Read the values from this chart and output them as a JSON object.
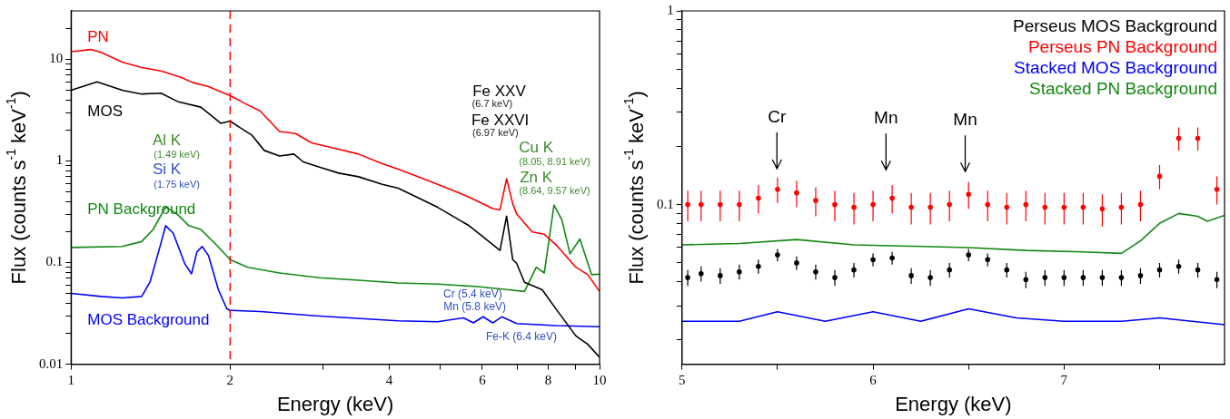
{
  "chart_data": [
    {
      "type": "line",
      "log": "xy",
      "xlabel": "Energy (keV)",
      "ylabel": "Flux (counts s$^{-1}$ keV$^{-1}$)",
      "xlim": [
        1,
        10
      ],
      "xticks": [
        1,
        2,
        {
          "value": 3,
          "label": null
        },
        4,
        {
          "value": 5,
          "label": null
        },
        6,
        {
          "value": 7,
          "label": null
        },
        8,
        {
          "value": 9,
          "label": null
        },
        10
      ],
      "ylim": [
        0.01,
        30
      ],
      "yticks": [
        0.01,
        {
          "value": 0.02,
          "label": null
        },
        {
          "value": 0.03,
          "label": null
        },
        {
          "value": 0.04,
          "label": null
        },
        {
          "value": 0.05,
          "label": null
        },
        {
          "value": 0.06,
          "label": null
        },
        {
          "value": 0.07,
          "label": null
        },
        {
          "value": 0.08,
          "label": null
        },
        {
          "value": 0.09,
          "label": null
        },
        0.1,
        {
          "value": 0.2,
          "label": null
        },
        {
          "value": 0.3,
          "label": null
        },
        {
          "value": 0.4,
          "label": null
        },
        {
          "value": 0.5,
          "label": null
        },
        {
          "value": 0.6,
          "label": null
        },
        {
          "value": 0.7,
          "label": null
        },
        {
          "value": 0.8,
          "label": null
        },
        {
          "value": 0.9,
          "label": null
        },
        1,
        {
          "value": 2,
          "label": null
        },
        {
          "value": 3,
          "label": null
        },
        {
          "value": 4,
          "label": null
        },
        {
          "value": 5,
          "label": null
        },
        {
          "value": 6,
          "label": null
        },
        {
          "value": 7,
          "label": null
        },
        {
          "value": 8,
          "label": null
        },
        {
          "value": 9,
          "label": null
        },
        10,
        {
          "value": 20,
          "label": null
        }
      ],
      "legend": false,
      "grid": false,
      "marker": "none",
      "ref_lines": [
        {
          "axis": "x",
          "value": 2,
          "color": "#ff0000",
          "line_style": "dashed"
        }
      ],
      "annotations": [
        "Fe XXV",
        "(6.7 keV)",
        "Fe XXVI",
        "(6.97 keV)",
        "Al K",
        "(1.49 keV)",
        "Si K",
        "(1.75 keV)",
        "Cu K",
        "(8.05, 8.91 keV)",
        "Zn K",
        "(8.64, 9.57 keV)",
        "Cr (5.4 keV)",
        "Mn (5.8 keV)",
        "Fe-K (6.4 keV)"
      ],
      "series": [
        {
          "name": "PN",
          "color": "#ff0000",
          "x": [
            1,
            1.09,
            1.14,
            1.25,
            1.36,
            1.48,
            1.61,
            1.7,
            1.82,
            2,
            2.13,
            2.28,
            2.48,
            2.66,
            2.85,
            3.1,
            3.5,
            3.88,
            4.16,
            4.53,
            4.94,
            5.67,
            6.28,
            6.48,
            6.67,
            6.85,
            6.97,
            7.46,
            7.86,
            8.27,
            9.02,
            9.5,
            10
          ],
          "values": [
            11.9,
            12.5,
            11.7,
            9.4,
            8.3,
            7.7,
            6.7,
            5.9,
            5.4,
            4.4,
            3.7,
            3.1,
            1.95,
            1.86,
            1.51,
            1.36,
            1.17,
            0.94,
            0.83,
            0.7,
            0.59,
            0.44,
            0.34,
            0.33,
            0.67,
            0.38,
            0.3,
            0.2,
            0.19,
            0.15,
            0.09,
            0.076,
            0.052
          ]
        },
        {
          "name": "MOS",
          "color": "#000000",
          "x": [
            1,
            1.12,
            1.25,
            1.36,
            1.48,
            1.59,
            1.76,
            1.92,
            2,
            2.09,
            2.2,
            2.32,
            2.48,
            2.64,
            2.75,
            2.95,
            3.21,
            3.5,
            3.88,
            4.16,
            4.94,
            5.67,
            6.48,
            6.67,
            6.85,
            6.97,
            7.21,
            7.79,
            8.27,
            9.02,
            9.5,
            10
          ],
          "values": [
            4.97,
            6.0,
            4.97,
            4.56,
            4.64,
            3.85,
            3.39,
            2.35,
            2.47,
            2.12,
            1.79,
            1.27,
            1.12,
            1.17,
            0.98,
            0.87,
            0.76,
            0.7,
            0.59,
            0.54,
            0.35,
            0.23,
            0.132,
            0.286,
            0.107,
            0.098,
            0.064,
            0.054,
            0.035,
            0.019,
            0.0157,
            0.0117
          ]
        },
        {
          "name": "PN Background",
          "color": "#118811",
          "x": [
            1,
            1.25,
            1.36,
            1.43,
            1.51,
            1.59,
            1.67,
            1.76,
            1.88,
            2,
            2.16,
            2.48,
            2.95,
            3.5,
            4.16,
            4.94,
            5.87,
            6.73,
            7.21,
            7.59,
            7.86,
            8.2,
            8.49,
            8.79,
            9.18,
            9.66,
            10
          ],
          "values": [
            0.141,
            0.144,
            0.161,
            0.212,
            0.353,
            0.298,
            0.231,
            0.212,
            0.151,
            0.107,
            0.09,
            0.079,
            0.071,
            0.067,
            0.063,
            0.0615,
            0.058,
            0.054,
            0.052,
            0.09,
            0.079,
            0.369,
            0.262,
            0.122,
            0.171,
            0.076,
            0.077
          ]
        },
        {
          "name": "MOS Background",
          "color": "#0000ff",
          "x": [
            1,
            1.14,
            1.25,
            1.36,
            1.41,
            1.47,
            1.51,
            1.56,
            1.64,
            1.69,
            1.73,
            1.77,
            1.82,
            1.9,
            1.97,
            2,
            2.28,
            2.95,
            4.16,
            4.94,
            5.53,
            5.77,
            6.02,
            6.28,
            6.53,
            6.97,
            8.27,
            10
          ],
          "values": [
            0.0497,
            0.0464,
            0.0449,
            0.0464,
            0.0641,
            0.138,
            0.231,
            0.195,
            0.0984,
            0.0775,
            0.127,
            0.144,
            0.117,
            0.054,
            0.0353,
            0.0339,
            0.033,
            0.0298,
            0.0267,
            0.0262,
            0.0286,
            0.0255,
            0.0293,
            0.0255,
            0.0293,
            0.0251,
            0.024,
            0.0234
          ]
        }
      ]
    },
    {
      "type": "line",
      "log": "y",
      "xlabel": "Energy (keV)",
      "ylabel": "Flux (counts s$^{-1}$ keV$^{-1}$)",
      "xlim": [
        5,
        7.84
      ],
      "xticks": [
        5,
        {
          "value": 5.5,
          "label": null
        },
        6,
        {
          "value": 6.5,
          "label": null
        },
        7,
        {
          "value": 7.5,
          "label": null
        }
      ],
      "ylim": [
        0.015,
        1
      ],
      "yticks": [
        {
          "value": 0.02,
          "label": null
        },
        {
          "value": 0.03,
          "label": null
        },
        {
          "value": 0.04,
          "label": null
        },
        {
          "value": 0.05,
          "label": null
        },
        {
          "value": 0.06,
          "label": null
        },
        {
          "value": 0.07,
          "label": null
        },
        {
          "value": 0.08,
          "label": null
        },
        {
          "value": 0.09,
          "label": null
        },
        0.1,
        {
          "value": 0.2,
          "label": null
        },
        {
          "value": 0.3,
          "label": null
        },
        {
          "value": 0.4,
          "label": null
        },
        {
          "value": 0.5,
          "label": null
        },
        {
          "value": 0.6,
          "label": null
        },
        {
          "value": 0.7,
          "label": null
        },
        {
          "value": 0.8,
          "label": null
        },
        {
          "value": 0.9,
          "label": null
        },
        1
      ],
      "legend": "top right",
      "grid": false,
      "annotations": [
        "Cr",
        "Mn",
        "Mn"
      ],
      "series": [
        {
          "name": "Perseus MOS Background",
          "color": "#000000",
          "type": "scatter",
          "marker": "circle",
          "x": [
            5.03,
            5.1,
            5.2,
            5.3,
            5.4,
            5.5,
            5.6,
            5.7,
            5.8,
            5.9,
            6.0,
            6.1,
            6.2,
            6.3,
            6.4,
            6.5,
            6.6,
            6.7,
            6.8,
            6.9,
            7.0,
            7.1,
            7.2,
            7.3,
            7.4,
            7.5,
            7.6,
            7.7,
            7.8
          ],
          "values": [
            0.042,
            0.044,
            0.043,
            0.045,
            0.048,
            0.055,
            0.05,
            0.045,
            0.042,
            0.046,
            0.052,
            0.053,
            0.043,
            0.042,
            0.046,
            0.055,
            0.052,
            0.046,
            0.041,
            0.042,
            0.042,
            0.042,
            0.042,
            0.042,
            0.043,
            0.046,
            0.048,
            0.046,
            0.041
          ],
          "errors": [
            0.004,
            0.004,
            0.004,
            0.004,
            0.004,
            0.004,
            0.004,
            0.004,
            0.004,
            0.004,
            0.004,
            0.004,
            0.004,
            0.004,
            0.004,
            0.004,
            0.004,
            0.004,
            0.004,
            0.004,
            0.004,
            0.004,
            0.004,
            0.004,
            0.004,
            0.004,
            0.004,
            0.004,
            0.004
          ]
        },
        {
          "name": "Perseus PN Background",
          "color": "#ff0000",
          "type": "scatter",
          "marker": "circle",
          "x": [
            5.03,
            5.1,
            5.2,
            5.3,
            5.4,
            5.5,
            5.6,
            5.7,
            5.8,
            5.9,
            6.0,
            6.1,
            6.2,
            6.3,
            6.4,
            6.5,
            6.6,
            6.7,
            6.8,
            6.9,
            7.0,
            7.1,
            7.2,
            7.3,
            7.4,
            7.5,
            7.6,
            7.7,
            7.8
          ],
          "values": [
            0.1,
            0.1,
            0.1,
            0.1,
            0.108,
            0.12,
            0.115,
            0.105,
            0.1,
            0.097,
            0.1,
            0.108,
            0.097,
            0.097,
            0.1,
            0.113,
            0.1,
            0.097,
            0.1,
            0.097,
            0.097,
            0.097,
            0.095,
            0.097,
            0.1,
            0.14,
            0.22,
            0.22,
            0.12
          ],
          "errors": [
            0.018,
            0.018,
            0.018,
            0.018,
            0.018,
            0.018,
            0.018,
            0.018,
            0.018,
            0.018,
            0.018,
            0.018,
            0.018,
            0.018,
            0.018,
            0.018,
            0.018,
            0.018,
            0.018,
            0.018,
            0.018,
            0.018,
            0.018,
            0.018,
            0.018,
            0.02,
            0.03,
            0.03,
            0.02
          ]
        },
        {
          "name": "Stacked MOS Background",
          "color": "#0000ff",
          "marker": "none",
          "x": [
            5.0,
            5.3,
            5.5,
            5.75,
            6.0,
            6.25,
            6.5,
            6.75,
            7.0,
            7.3,
            7.5,
            7.84
          ],
          "values": [
            0.025,
            0.025,
            0.028,
            0.025,
            0.028,
            0.025,
            0.029,
            0.026,
            0.025,
            0.025,
            0.026,
            0.024
          ]
        },
        {
          "name": "Stacked PN Background",
          "color": "#118811",
          "marker": "none",
          "x": [
            5.0,
            5.3,
            5.6,
            5.9,
            6.2,
            6.5,
            6.8,
            7.1,
            7.3,
            7.4,
            7.5,
            7.6,
            7.7,
            7.75,
            7.84
          ],
          "values": [
            0.062,
            0.063,
            0.066,
            0.062,
            0.061,
            0.06,
            0.058,
            0.057,
            0.056,
            0.065,
            0.08,
            0.09,
            0.087,
            0.082,
            0.088
          ]
        }
      ]
    }
  ]
}
